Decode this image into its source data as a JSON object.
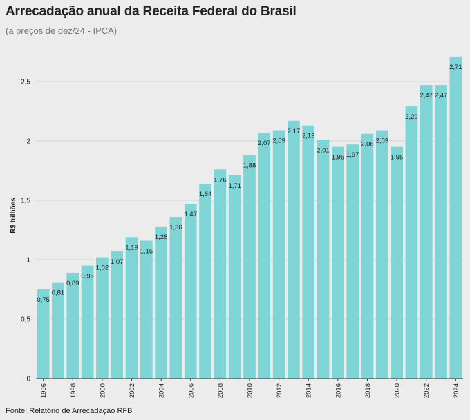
{
  "header": {
    "title": "Arrecadação anual da Receita Federal do Brasil",
    "subtitle": "(a preços de dez/24 - IPCA)"
  },
  "footer": {
    "source_label": "Fonte:",
    "source_link": "Relatório de Arrecadação RFB"
  },
  "colors": {
    "bar": "#7fd4d6",
    "grid": "#d4d4d4",
    "axis": "#333333",
    "text": "#222222"
  },
  "chart_data": {
    "type": "bar",
    "title": "Arrecadação anual da Receita Federal do Brasil",
    "subtitle": "(a preços de dez/24 - IPCA)",
    "xlabel": "",
    "ylabel": "R$ trilhões",
    "ylim": [
      0,
      2.75
    ],
    "yticks": [
      0,
      0.5,
      1,
      1.5,
      2,
      2.5
    ],
    "ytick_labels": [
      "0",
      "0,5",
      "1",
      "1,5",
      "2",
      "2,5"
    ],
    "grid": true,
    "categories": [
      "1996",
      "1997",
      "1998",
      "1999",
      "2000",
      "2001",
      "2002",
      "2003",
      "2004",
      "2005",
      "2006",
      "2007",
      "2008",
      "2009",
      "2010",
      "2011",
      "2012",
      "2013",
      "2014",
      "2015",
      "2016",
      "2017",
      "2018",
      "2019",
      "2020",
      "2021",
      "2022",
      "2023",
      "2024"
    ],
    "xtick_labels": [
      "1996",
      "1998",
      "2000",
      "2002",
      "2004",
      "2006",
      "2008",
      "2010",
      "2012",
      "2014",
      "2016",
      "2018",
      "2020",
      "2022",
      "2024"
    ],
    "values": [
      0.75,
      0.81,
      0.89,
      0.95,
      1.02,
      1.07,
      1.19,
      1.16,
      1.28,
      1.36,
      1.47,
      1.64,
      1.76,
      1.71,
      1.88,
      2.07,
      2.09,
      2.17,
      2.13,
      2.01,
      1.95,
      1.97,
      2.06,
      2.09,
      1.95,
      2.29,
      2.47,
      2.47,
      2.71
    ],
    "value_labels": [
      "0,75",
      "0,81",
      "0,89",
      "0,95",
      "1,02",
      "1,07",
      "1,19",
      "1,16",
      "1,28",
      "1,36",
      "1,47",
      "1,64",
      "1,76",
      "1,71",
      "1,88",
      "2,07",
      "2,09",
      "2,17",
      "2,13",
      "2,01",
      "1,95",
      "1,97",
      "2,06",
      "2,09",
      "1,95",
      "2,29",
      "2,47",
      "2,47",
      "2,71"
    ]
  }
}
